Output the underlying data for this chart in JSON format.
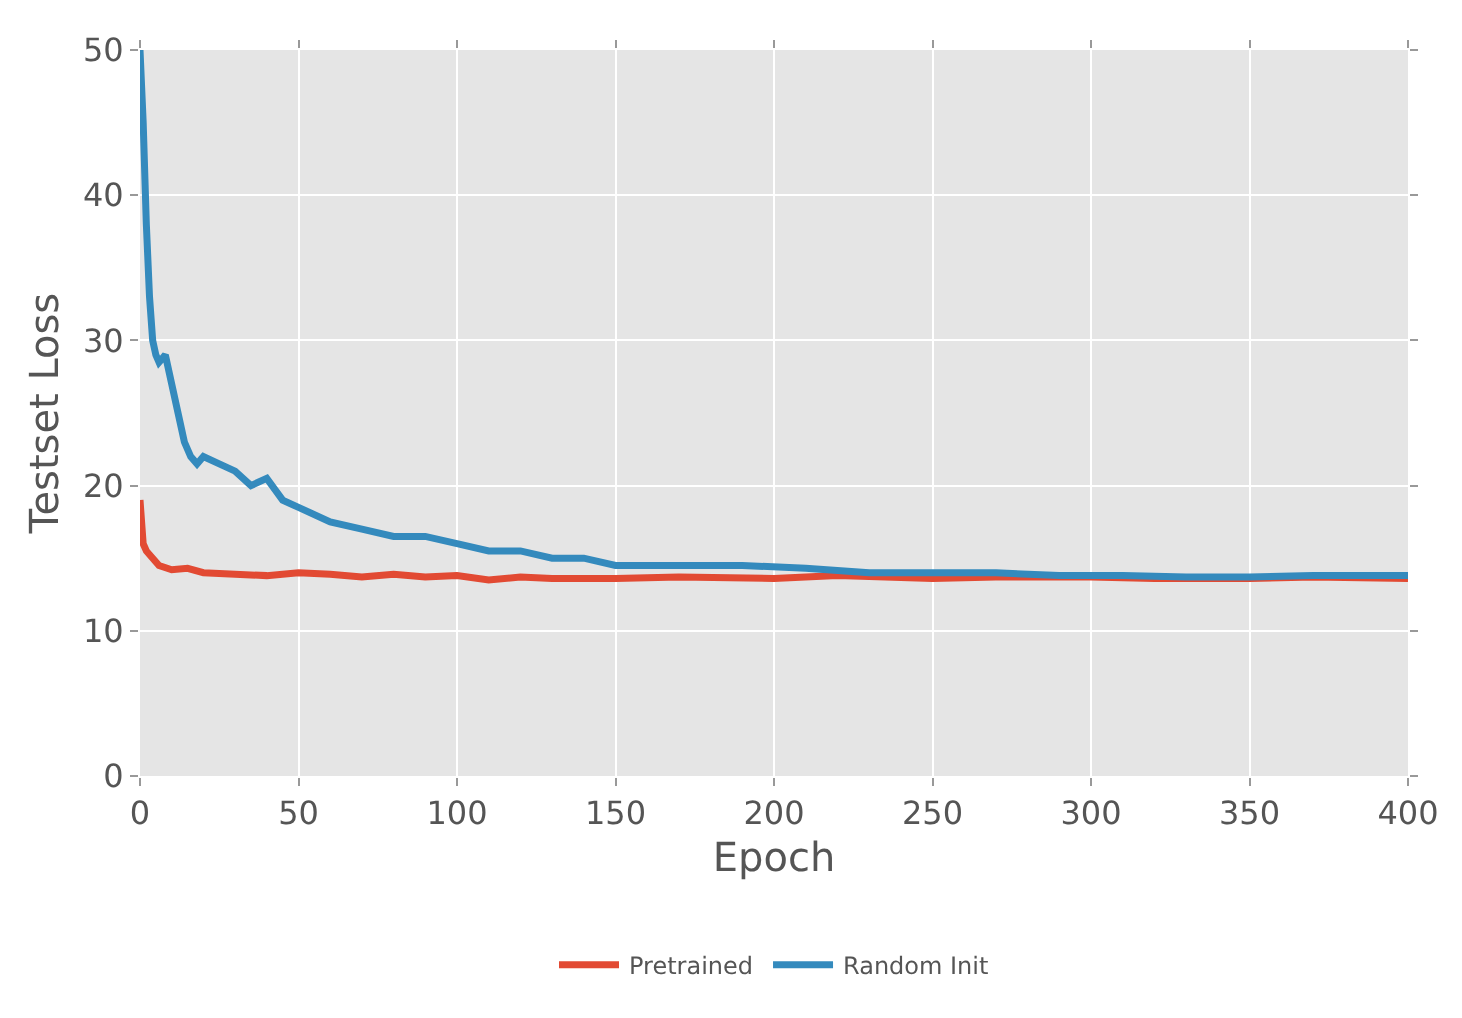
{
  "chart_data": {
    "type": "line",
    "xlabel": "Epoch",
    "ylabel": "Testset Loss",
    "xlim": [
      0,
      400
    ],
    "xticks": [
      0,
      50,
      100,
      150,
      200,
      250,
      300,
      350,
      400
    ],
    "ylim": [
      0,
      50
    ],
    "yticks": [
      0,
      10,
      20,
      30,
      40,
      50
    ],
    "grid": true,
    "legend": "bottom",
    "marker": "none",
    "line_style": "solid",
    "series": [
      {
        "name": "Pretrained",
        "color": "#e24a33",
        "x": [
          0,
          1,
          2,
          4,
          6,
          10,
          15,
          20,
          30,
          40,
          50,
          60,
          70,
          80,
          90,
          100,
          110,
          120,
          130,
          150,
          170,
          200,
          220,
          250,
          270,
          300,
          320,
          350,
          370,
          400
        ],
        "values": [
          19,
          16,
          15.5,
          15,
          14.5,
          14.2,
          14.3,
          14,
          13.9,
          13.8,
          14,
          13.9,
          13.7,
          13.9,
          13.7,
          13.8,
          13.5,
          13.7,
          13.6,
          13.6,
          13.7,
          13.6,
          13.8,
          13.6,
          13.7,
          13.7,
          13.6,
          13.6,
          13.7,
          13.6
        ]
      },
      {
        "name": "Random Init",
        "color": "#348abd",
        "x": [
          0,
          1,
          2,
          3,
          4,
          5,
          6,
          8,
          10,
          12,
          14,
          16,
          18,
          20,
          25,
          30,
          35,
          40,
          45,
          50,
          60,
          70,
          80,
          90,
          100,
          110,
          120,
          130,
          140,
          150,
          170,
          190,
          210,
          230,
          250,
          270,
          290,
          310,
          330,
          350,
          370,
          390,
          400
        ],
        "values": [
          50,
          45,
          38,
          33,
          30,
          29,
          28.5,
          29,
          27,
          25,
          23,
          22,
          21.5,
          22,
          21.5,
          21,
          20,
          20.5,
          19,
          18.5,
          17.5,
          17,
          16.5,
          16.5,
          16,
          15.5,
          15.5,
          15,
          15,
          14.5,
          14.5,
          14.5,
          14.3,
          14,
          14,
          14,
          13.8,
          13.8,
          13.7,
          13.7,
          13.8,
          13.8,
          13.8
        ]
      }
    ]
  }
}
